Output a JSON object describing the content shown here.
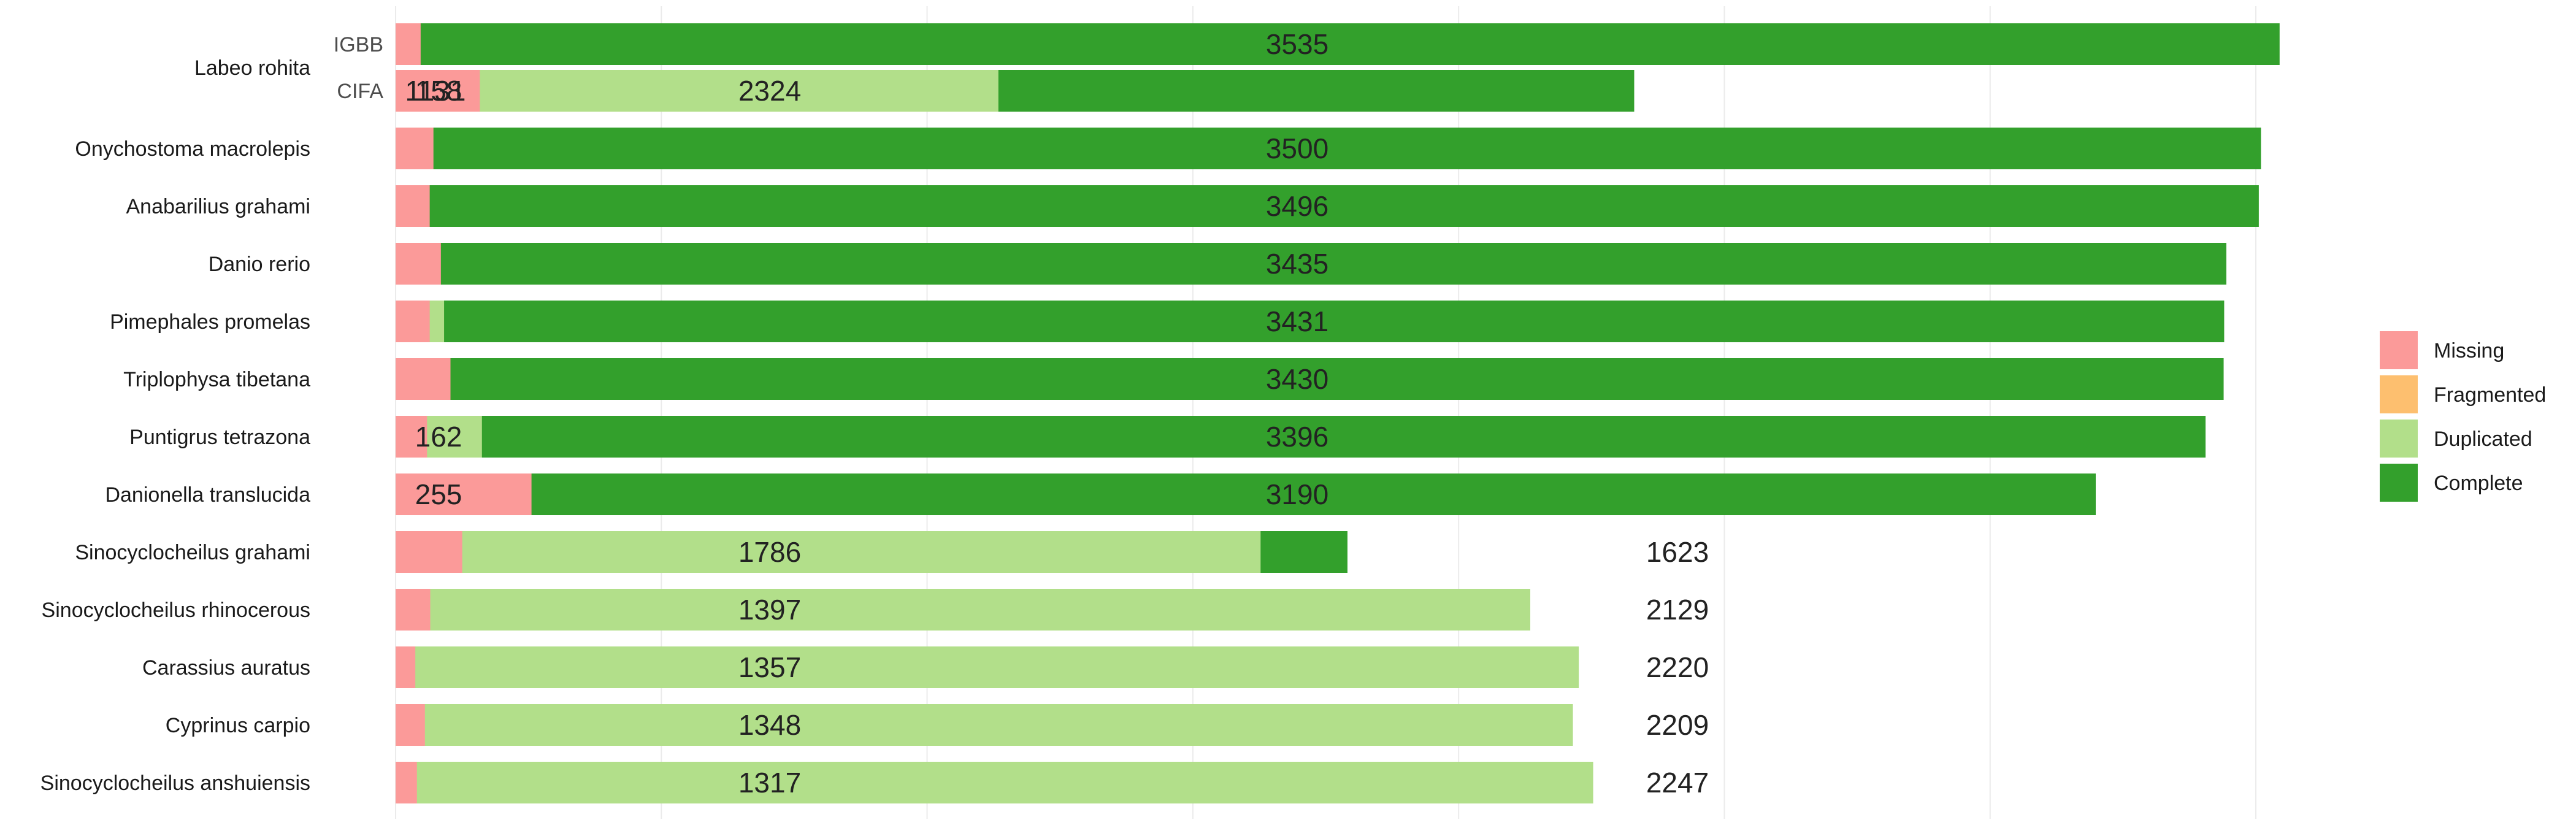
{
  "chart_data": {
    "type": "bar",
    "orientation": "horizontal",
    "stacked": true,
    "title": "",
    "xlabel": "",
    "ylabel": "",
    "xlim": [
      0,
      3640
    ],
    "grid": true,
    "legend_position": "right",
    "legend_order": [
      "Missing",
      "Fragmented",
      "Duplicated",
      "Complete"
    ],
    "series": [
      {
        "name": "Complete",
        "color": "#33A02C"
      },
      {
        "name": "Duplicated",
        "color": "#B2DF8A"
      },
      {
        "name": "Fragmented",
        "color": "#FDBF6F"
      },
      {
        "name": "Missing",
        "color": "#FB9A99"
      }
    ],
    "rows": [
      {
        "species": "Labeo rohita",
        "sub": "IGBB",
        "values": {
          "Complete": 3535,
          "Duplicated": 36,
          "Fragmented": 22,
          "Missing": 47
        },
        "labels": {
          "Complete": "3535"
        }
      },
      {
        "species": "Labeo rohita",
        "sub": "CIFA",
        "values": {
          "Complete": 2324,
          "Duplicated": 1131,
          "Fragmented": 27,
          "Missing": 158
        },
        "labels": {
          "Complete": "2324",
          "Duplicated": "1131",
          "Missing": "158"
        }
      },
      {
        "species": "Onychostoma macrolepis",
        "sub": "",
        "values": {
          "Complete": 3500,
          "Duplicated": 44,
          "Fragmented": 25,
          "Missing": 71
        },
        "labels": {
          "Complete": "3500"
        }
      },
      {
        "species": "Anabarilius grahami",
        "sub": "",
        "values": {
          "Complete": 3496,
          "Duplicated": 40,
          "Fragmented": 40,
          "Missing": 64
        },
        "labels": {
          "Complete": "3496"
        }
      },
      {
        "species": "Danio rerio",
        "sub": "",
        "values": {
          "Complete": 3435,
          "Duplicated": 59,
          "Fragmented": 61,
          "Missing": 85
        },
        "labels": {
          "Complete": "3435"
        }
      },
      {
        "species": "Pimephales promelas",
        "sub": "",
        "values": {
          "Complete": 3431,
          "Duplicated": 91,
          "Fragmented": 54,
          "Missing": 64
        },
        "labels": {
          "Complete": "3431"
        }
      },
      {
        "species": "Triplophysa tibetana",
        "sub": "",
        "values": {
          "Complete": 3430,
          "Duplicated": 83,
          "Fragmented": 24,
          "Missing": 103
        },
        "labels": {
          "Complete": "3430"
        }
      },
      {
        "species": "Puntigrus tetrazona",
        "sub": "",
        "values": {
          "Complete": 3396,
          "Duplicated": 162,
          "Fragmented": 23,
          "Missing": 59
        },
        "labels": {
          "Complete": "3396",
          "Duplicated": "162"
        }
      },
      {
        "species": "Danionella translucida",
        "sub": "",
        "values": {
          "Complete": 3190,
          "Duplicated": 97,
          "Fragmented": 98,
          "Missing": 255
        },
        "labels": {
          "Complete": "3190",
          "Missing": "255"
        }
      },
      {
        "species": "Sinocyclocheilus grahami",
        "sub": "",
        "values": {
          "Complete": 1786,
          "Duplicated": 1623,
          "Fragmented": 106,
          "Missing": 125
        },
        "labels": {
          "Complete": "1786",
          "Duplicated": "1623"
        }
      },
      {
        "species": "Sinocyclocheilus rhinocerous",
        "sub": "",
        "values": {
          "Complete": 1397,
          "Duplicated": 2129,
          "Fragmented": 49,
          "Missing": 65
        },
        "labels": {
          "Complete": "1397",
          "Duplicated": "2129"
        }
      },
      {
        "species": "Carassius auratus",
        "sub": "",
        "values": {
          "Complete": 1357,
          "Duplicated": 2220,
          "Fragmented": 26,
          "Missing": 37
        },
        "labels": {
          "Complete": "1357",
          "Duplicated": "2220"
        }
      },
      {
        "species": "Cyprinus carpio",
        "sub": "",
        "values": {
          "Complete": 1348,
          "Duplicated": 2209,
          "Fragmented": 28,
          "Missing": 55
        },
        "labels": {
          "Complete": "1348",
          "Duplicated": "2209"
        }
      },
      {
        "species": "Sinocyclocheilus anshuiensis",
        "sub": "",
        "values": {
          "Complete": 1317,
          "Duplicated": 2247,
          "Fragmented": 36,
          "Missing": 40
        },
        "labels": {
          "Complete": "1317",
          "Duplicated": "2247"
        }
      }
    ]
  }
}
